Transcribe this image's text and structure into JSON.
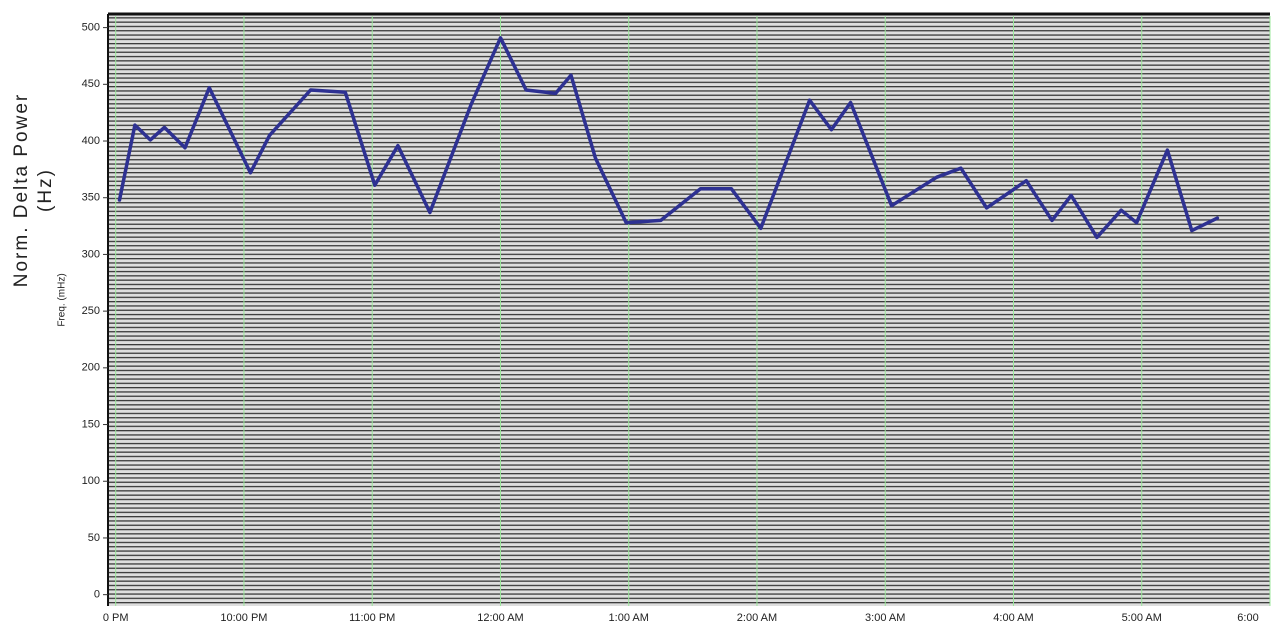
{
  "chart_data": {
    "type": "line",
    "y_label": [
      "Norm. Delta Power",
      "(Hz)"
    ],
    "inner_label": "Freq. (mHz)",
    "x": [
      0.03,
      0.15,
      0.27,
      0.38,
      0.54,
      0.73,
      1.05,
      1.2,
      1.52,
      1.79,
      2.02,
      2.2,
      2.45,
      2.77,
      3.0,
      3.2,
      3.43,
      3.55,
      3.74,
      3.98,
      4.25,
      4.56,
      4.8,
      5.03,
      5.41,
      5.58,
      5.73,
      6.05,
      6.4,
      6.59,
      6.79,
      7.1,
      7.3,
      7.45,
      7.65,
      7.84,
      7.96,
      8.2,
      8.39,
      8.59
    ],
    "series": [
      {
        "color": "#2e3192",
        "values": [
          348,
          414,
          401,
          412,
          394,
          447,
          372,
          405,
          445,
          443,
          361,
          396,
          337,
          432,
          491,
          445,
          442,
          458,
          385,
          328,
          330,
          358,
          358,
          323,
          436,
          410,
          434,
          343,
          368,
          376,
          341,
          365,
          330,
          352,
          315,
          339,
          328,
          392,
          321,
          332
        ]
      }
    ],
    "xlim": [
      -0.06,
      9.0
    ],
    "ylim": [
      -10,
      512
    ],
    "xticks": [
      {
        "value": 0,
        "label": "0 PM"
      },
      {
        "value": 1,
        "label": "10:00 PM"
      },
      {
        "value": 2,
        "label": "11:00 PM"
      },
      {
        "value": 3,
        "label": "12:00 AM"
      },
      {
        "value": 4,
        "label": "1:00 AM"
      },
      {
        "value": 5,
        "label": "2:00 AM"
      },
      {
        "value": 6,
        "label": "3:00 AM"
      },
      {
        "value": 7,
        "label": "4:00 AM"
      },
      {
        "value": 8,
        "label": "5:00 AM"
      },
      {
        "value": 9,
        "label": "6:00"
      }
    ],
    "yticks": [
      0,
      50,
      100,
      150,
      200,
      250,
      300,
      350,
      400,
      450,
      500
    ],
    "grid": true
  }
}
